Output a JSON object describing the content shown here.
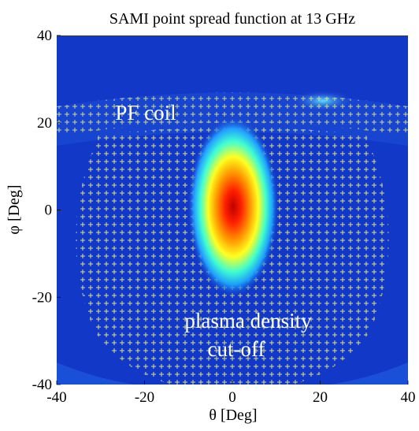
{
  "chart_data": {
    "type": "heatmap",
    "title": "SAMI point spread function at 13 GHz",
    "x_label": "θ [Deg]",
    "y_label": "φ [Deg]",
    "xlim": [
      -40,
      40
    ],
    "ylim": [
      -40,
      40
    ],
    "xticks": [
      -40,
      -20,
      0,
      20,
      40
    ],
    "yticks": [
      -40,
      -20,
      0,
      20,
      40
    ],
    "annotations": [
      "PF coil",
      "plasma density",
      "cut-off"
    ]
  }
}
